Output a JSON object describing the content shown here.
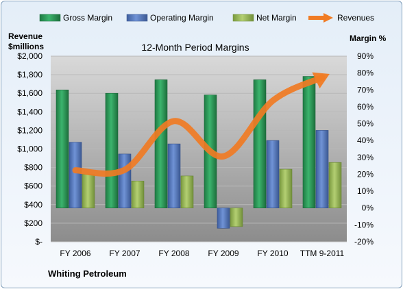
{
  "chart_data": {
    "type": "bar",
    "title": "12-Month Period Margins",
    "company": "Whiting Petroleum",
    "categories": [
      "FY 2006",
      "FY 2007",
      "FY 2008",
      "FY 2009",
      "FY 2010",
      "TTM 9-2011"
    ],
    "y_left": {
      "label_line1": "Revenue",
      "label_line2": "$millions",
      "range": [
        0,
        2000
      ],
      "ticks": [
        "$-",
        "$200",
        "$400",
        "$600",
        "$800",
        "$1,000",
        "$1,200",
        "$1,400",
        "$1,600",
        "$1,800",
        "$2,000"
      ]
    },
    "y_right": {
      "label": "Margin %",
      "range": [
        -0.2,
        0.9
      ],
      "ticks": [
        "-20%",
        "-10%",
        "0%",
        "10%",
        "20%",
        "30%",
        "40%",
        "50%",
        "60%",
        "70%",
        "80%",
        "90%"
      ]
    },
    "series": [
      {
        "name": "Gross Margin",
        "kind": "bar",
        "axis": "right",
        "color": "#2e9c5a",
        "values": [
          0.7,
          0.68,
          0.76,
          0.67,
          0.76,
          0.78
        ]
      },
      {
        "name": "Operating Margin",
        "kind": "bar",
        "axis": "right",
        "color": "#5b7fc4",
        "values": [
          0.39,
          0.32,
          0.38,
          -0.12,
          0.4,
          0.46
        ]
      },
      {
        "name": "Net Margin",
        "kind": "bar",
        "axis": "right",
        "color": "#9bbb59",
        "values": [
          0.2,
          0.16,
          0.19,
          -0.11,
          0.23,
          0.27
        ]
      },
      {
        "name": "Revenues",
        "kind": "line",
        "axis": "left",
        "color": "#f07b24",
        "values": [
          770,
          775,
          1300,
          920,
          1520,
          1770
        ]
      }
    ],
    "grid": true,
    "legend_position": "top"
  }
}
